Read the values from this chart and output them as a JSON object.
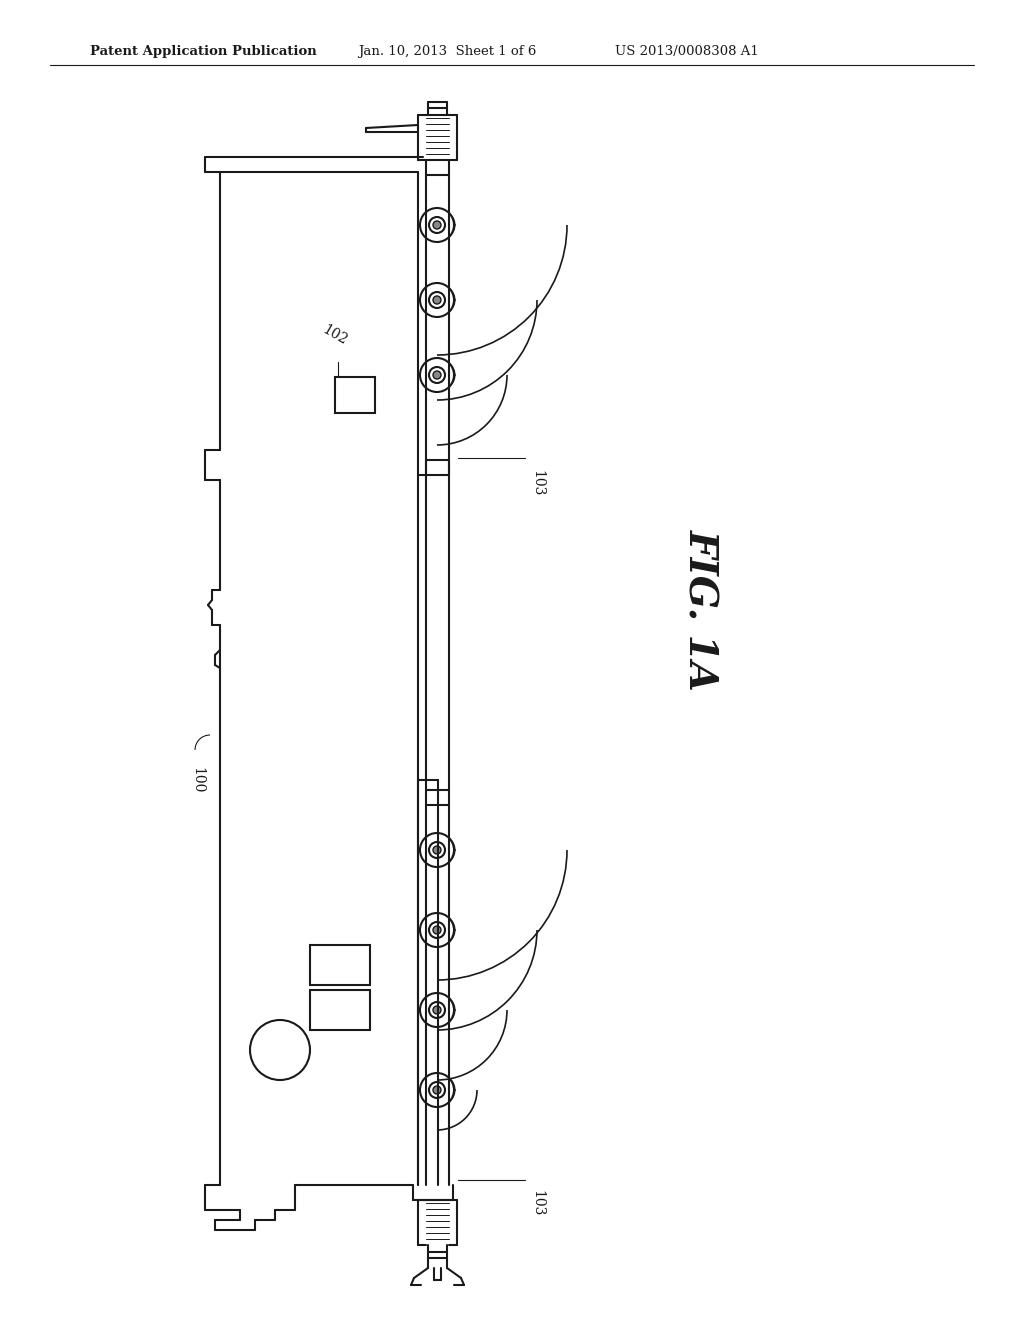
{
  "background_color": "#ffffff",
  "header_text": "Patent Application Publication",
  "header_date": "Jan. 10, 2013  Sheet 1 of 6",
  "header_patent": "US 2013/0008308 A1",
  "fig_label": "FIG. 1A",
  "label_100": "100",
  "label_102": "102",
  "label_103_top": "103",
  "label_103_bottom": "103",
  "line_color": "#1a1a1a",
  "line_width": 1.5,
  "font_size_header": 9,
  "font_size_label": 10
}
